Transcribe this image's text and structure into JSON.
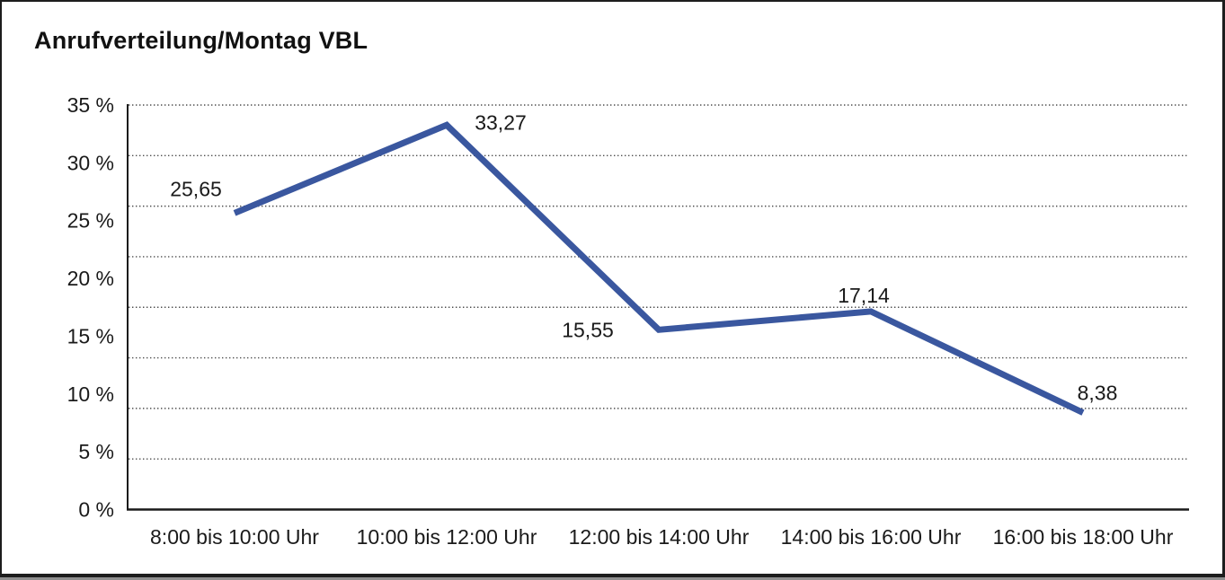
{
  "title": "Anrufverteilung/Montag VBL",
  "colors": {
    "background": "#ffffff",
    "text": "#1a1a1a",
    "line": "#3a579f",
    "grid_dots": "#4d4d4d",
    "axis": "#1a1a1a",
    "window_border": "#1d1d1d",
    "window_shadow": "#8f8f8f"
  },
  "chart_data": {
    "type": "line",
    "title": "Anrufverteilung/Montag VBL",
    "categories": [
      "8:00 bis 10:00 Uhr",
      "10:00 bis 12:00 Uhr",
      "12:00 bis 14:00 Uhr",
      "14:00 bis 16:00 Uhr",
      "16:00 bis 18:00 Uhr"
    ],
    "values": [
      25.65,
      33.27,
      15.55,
      17.14,
      8.38
    ],
    "value_labels": [
      "25,65",
      "33,27",
      "15,55",
      "17,14",
      "8,38"
    ],
    "y_tick_labels": [
      "35 %",
      "30 %",
      "25 %",
      "20 %",
      "15 %",
      "10 %",
      "5 %",
      "0 %"
    ],
    "y_tick_values": [
      35,
      30,
      25,
      20,
      15,
      10,
      5,
      0
    ],
    "ylim": [
      0,
      35
    ],
    "xlabel": "",
    "ylabel": "",
    "legend": "none",
    "grid": "horizontal-dotted"
  }
}
